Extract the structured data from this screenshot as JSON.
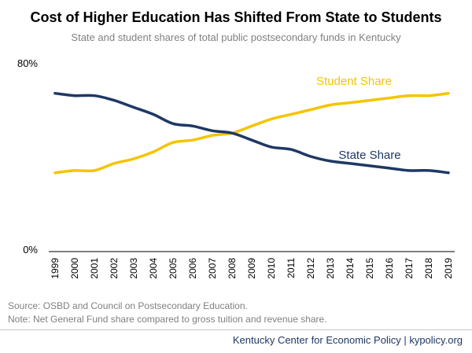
{
  "title": "Cost of Higher Education Has Shifted From State to Students",
  "subtitle": "State and student shares of total public postsecondary funds in Kentucky",
  "footer": {
    "source": "Source: OSBD and Council on Postsecondary Education.",
    "note": "Note: Net General Fund share compared to gross tuition and revenue share.",
    "credit": "Kentucky Center for Economic Policy | kypolicy.org"
  },
  "colors": {
    "state": "#1f3864",
    "student": "#f5c400",
    "axis": "#000000"
  },
  "chart_data": {
    "type": "line",
    "x": [
      "1999",
      "2000",
      "2001",
      "2002",
      "2003",
      "2004",
      "2005",
      "2006",
      "2007",
      "2008",
      "2009",
      "2010",
      "2011",
      "2012",
      "2013",
      "2014",
      "2015",
      "2016",
      "2017",
      "2018",
      "2019"
    ],
    "ylim": [
      0,
      80
    ],
    "ytick_labels": [
      "80%",
      "0%"
    ],
    "grid": false,
    "series": [
      {
        "name": "Student Share",
        "color": "#f5c400",
        "values": [
          33,
          34,
          34,
          37,
          39,
          42,
          46,
          47,
          49,
          50,
          53,
          56,
          58,
          60,
          62,
          63,
          64,
          65,
          66,
          66,
          67
        ]
      },
      {
        "name": "State Share",
        "color": "#1f3864",
        "values": [
          67,
          66,
          66,
          64,
          61,
          58,
          54,
          53,
          51,
          50,
          47,
          44,
          43,
          40,
          38,
          37,
          36,
          35,
          34,
          34,
          33
        ]
      }
    ]
  }
}
